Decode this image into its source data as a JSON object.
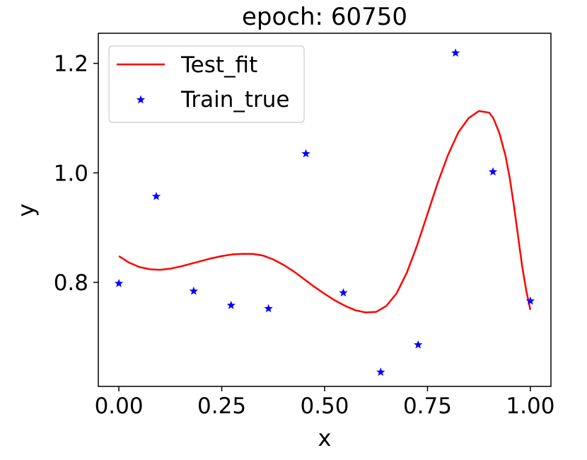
{
  "chart_data": {
    "type": "line",
    "title": "epoch: 60750",
    "xlabel": "x",
    "ylabel": "y",
    "xlim": [
      -0.05,
      1.05
    ],
    "ylim": [
      0.61,
      1.255
    ],
    "xticks": [
      "0.00",
      "0.25",
      "0.50",
      "0.75",
      "1.00"
    ],
    "xtick_values": [
      0.0,
      0.25,
      0.5,
      0.75,
      1.0
    ],
    "yticks": [
      "0.8",
      "1.0",
      "1.2"
    ],
    "ytick_values": [
      0.8,
      1.0,
      1.2
    ],
    "grid": false,
    "legend": "upper-left",
    "series": [
      {
        "name": "Test_fit",
        "kind": "line",
        "color": "#ff0000",
        "x": [
          0.0,
          0.025,
          0.05,
          0.075,
          0.1,
          0.125,
          0.15,
          0.175,
          0.2,
          0.225,
          0.25,
          0.275,
          0.3,
          0.325,
          0.35,
          0.375,
          0.4,
          0.425,
          0.45,
          0.475,
          0.5,
          0.525,
          0.55,
          0.575,
          0.6,
          0.625,
          0.65,
          0.675,
          0.7,
          0.725,
          0.75,
          0.775,
          0.8,
          0.825,
          0.85,
          0.875,
          0.9,
          0.91,
          0.925,
          0.94,
          0.95,
          0.96,
          0.97,
          0.98,
          0.99,
          1.0
        ],
        "y": [
          0.848,
          0.836,
          0.828,
          0.824,
          0.823,
          0.825,
          0.829,
          0.834,
          0.839,
          0.844,
          0.848,
          0.851,
          0.852,
          0.852,
          0.849,
          0.842,
          0.832,
          0.82,
          0.806,
          0.792,
          0.779,
          0.767,
          0.757,
          0.749,
          0.745,
          0.746,
          0.757,
          0.78,
          0.818,
          0.868,
          0.925,
          0.982,
          1.033,
          1.074,
          1.1,
          1.113,
          1.11,
          1.1,
          1.072,
          1.03,
          0.99,
          0.94,
          0.885,
          0.83,
          0.785,
          0.75
        ]
      },
      {
        "name": "Train_true",
        "kind": "scatter",
        "marker": "star",
        "color": "#0000ff",
        "x": [
          0.0,
          0.0909,
          0.1818,
          0.2727,
          0.3636,
          0.4545,
          0.5455,
          0.6364,
          0.7273,
          0.8182,
          0.9091,
          1.0
        ],
        "y": [
          0.798,
          0.957,
          0.784,
          0.758,
          0.752,
          1.035,
          0.781,
          0.636,
          0.686,
          1.219,
          1.002,
          0.766
        ]
      }
    ]
  }
}
